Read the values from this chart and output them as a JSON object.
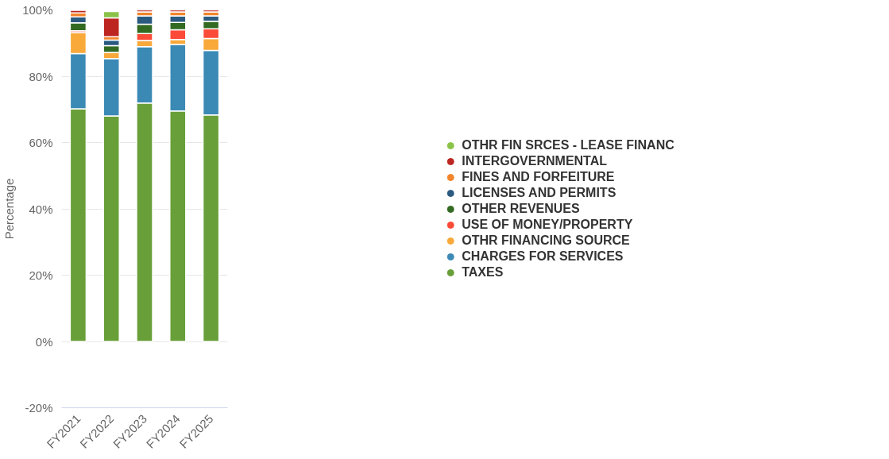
{
  "chart_data": {
    "type": "bar",
    "stacked": true,
    "ylabel": "Percentage",
    "categories": [
      "FY2021",
      "FY2022",
      "FY2023",
      "FY2024",
      "FY2025"
    ],
    "ylim": [
      -20,
      100
    ],
    "yticks": [
      {
        "value": -20,
        "label": "-20%"
      },
      {
        "value": 0,
        "label": "0%"
      },
      {
        "value": 20,
        "label": "20%"
      },
      {
        "value": 40,
        "label": "40%"
      },
      {
        "value": 60,
        "label": "60%"
      },
      {
        "value": 80,
        "label": "80%"
      },
      {
        "value": 100,
        "label": "100%"
      }
    ],
    "grid": "y",
    "legend": "right",
    "marker": "circle",
    "series": [
      {
        "name": "TAXES",
        "color": "#689f38",
        "values": [
          70.2,
          68.0,
          71.9,
          69.5,
          68.3
        ]
      },
      {
        "name": "CHARGES FOR SERVICES",
        "color": "#3b8ab5",
        "values": [
          16.6,
          17.3,
          17.0,
          20.1,
          19.5
        ]
      },
      {
        "name": "OTHR FINANCING SOURCE",
        "color": "#f8a93a",
        "values": [
          6.4,
          1.9,
          1.9,
          1.5,
          3.6
        ]
      },
      {
        "name": "USE OF MONEY/PROPERTY",
        "color": "#fb4b38",
        "values": [
          0.5,
          0,
          2.1,
          2.9,
          2.9
        ]
      },
      {
        "name": "OTHER REVENUES",
        "color": "#336a22",
        "values": [
          2.4,
          2.0,
          2.8,
          2.2,
          2.3
        ]
      },
      {
        "name": "LICENSES AND PERMITS",
        "color": "#2b5a80",
        "values": [
          1.8,
          1.7,
          2.5,
          2.0,
          1.6
        ]
      },
      {
        "name": "FINES AND FORFEITURE",
        "color": "#f2842b",
        "values": [
          1.2,
          1.0,
          1.2,
          1.2,
          1.2
        ]
      },
      {
        "name": "INTERGOVERNMENTAL",
        "color": "#bc2520",
        "values": [
          0.8,
          5.7,
          0.6,
          0.6,
          0.6
        ]
      },
      {
        "name": "OTHR FIN SRCES - LEASE FINANC",
        "color": "#8bc34a",
        "values": [
          0,
          1.9,
          0,
          0,
          0
        ]
      }
    ]
  }
}
